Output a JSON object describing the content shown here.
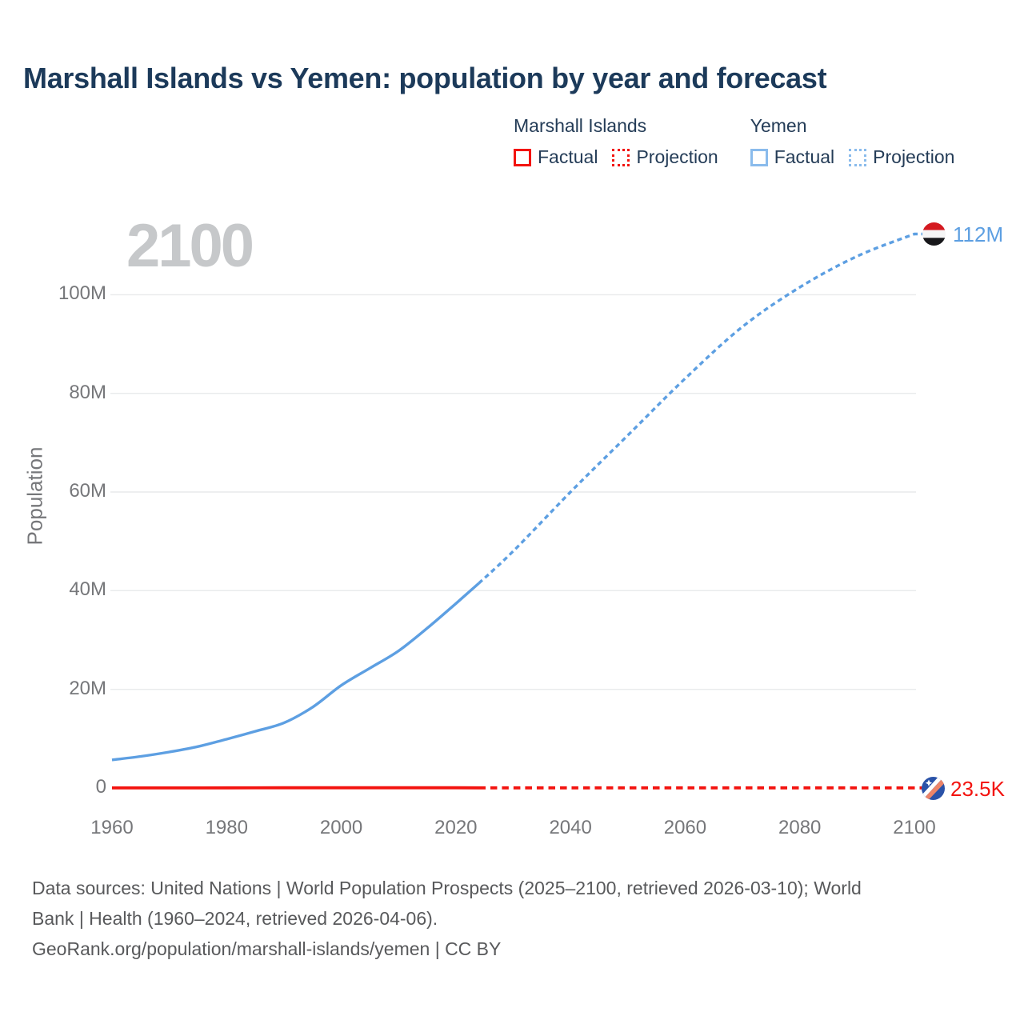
{
  "title": "Marshall Islands vs Yemen: population by year and forecast",
  "legend": {
    "groups": [
      {
        "label": "Marshall Islands",
        "color": "#f3130f",
        "items": [
          {
            "label": "Factual",
            "style": "solid"
          },
          {
            "label": "Projection",
            "style": "dotted"
          }
        ]
      },
      {
        "label": "Yemen",
        "color": "#8abbec",
        "items": [
          {
            "label": "Factual",
            "style": "solid"
          },
          {
            "label": "Projection",
            "style": "dotted"
          }
        ]
      }
    ]
  },
  "footer": {
    "lines": [
      "Data sources: United Nations | World Population Prospects (2025–2100, retrieved 2026-03-10); World",
      "Bank | Health (1960–2024, retrieved 2026-04-06).",
      "GeoRank.org/population/marshall-islands/yemen | CC BY"
    ]
  },
  "chart_data": {
    "type": "line",
    "title": "Marshall Islands vs Yemen: population by year and forecast",
    "xlabel": "",
    "ylabel": "Population",
    "watermark": "2100",
    "xlim": [
      1960,
      2100
    ],
    "ylim_millions": [
      0,
      114
    ],
    "grid": "horizontal",
    "legend_position": "top-right",
    "factual_until_year": 2024,
    "unit": "millions of people",
    "x_ticks": [
      1960,
      1980,
      2000,
      2020,
      2040,
      2060,
      2080,
      2100
    ],
    "y_ticks": [
      {
        "value_m": 0,
        "label": "0"
      },
      {
        "value_m": 20,
        "label": "20M"
      },
      {
        "value_m": 40,
        "label": "40M"
      },
      {
        "value_m": 60,
        "label": "60M"
      },
      {
        "value_m": 80,
        "label": "80M"
      },
      {
        "value_m": 100,
        "label": "100M"
      }
    ],
    "series": [
      {
        "name": "Yemen Factual",
        "group": "yemen",
        "style": "solid",
        "color": "#5d9fe2",
        "points": [
          [
            1960,
            5.7
          ],
          [
            1965,
            6.4
          ],
          [
            1970,
            7.3
          ],
          [
            1975,
            8.4
          ],
          [
            1980,
            9.9
          ],
          [
            1985,
            11.5
          ],
          [
            1990,
            13.2
          ],
          [
            1995,
            16.4
          ],
          [
            2000,
            20.8
          ],
          [
            2005,
            24.3
          ],
          [
            2010,
            27.8
          ],
          [
            2015,
            32.4
          ],
          [
            2020,
            37.4
          ],
          [
            2024,
            41.5
          ]
        ]
      },
      {
        "name": "Yemen Projection",
        "group": "yemen",
        "style": "dotted",
        "color": "#5d9fe2",
        "points": [
          [
            2024,
            41.5
          ],
          [
            2030,
            48
          ],
          [
            2040,
            60
          ],
          [
            2050,
            71.5
          ],
          [
            2060,
            83
          ],
          [
            2070,
            93.5
          ],
          [
            2080,
            101.5
          ],
          [
            2090,
            107.8
          ],
          [
            2100,
            112.3
          ]
        ]
      },
      {
        "name": "Marshall Islands Factual",
        "group": "marshall",
        "style": "solid",
        "color": "#f3130f",
        "points": [
          [
            1960,
            0.015
          ],
          [
            1970,
            0.023
          ],
          [
            1980,
            0.031
          ],
          [
            1990,
            0.046
          ],
          [
            2000,
            0.054
          ],
          [
            2010,
            0.053
          ],
          [
            2020,
            0.043
          ],
          [
            2024,
            0.038
          ]
        ]
      },
      {
        "name": "Marshall Islands Projection",
        "group": "marshall",
        "style": "dotted",
        "color": "#f3130f",
        "points": [
          [
            2024,
            0.038
          ],
          [
            2040,
            0.034
          ],
          [
            2060,
            0.029
          ],
          [
            2080,
            0.026
          ],
          [
            2100,
            0.0235
          ]
        ]
      }
    ],
    "end_labels": [
      {
        "series": "Yemen",
        "year": 2100,
        "label": "112M",
        "color": "#5d9fe2",
        "flag": "yemen-flag"
      },
      {
        "series": "Marshall Islands",
        "year": 2100,
        "label": "23.5K",
        "color": "#f3130f",
        "flag": "marshall-islands-flag"
      }
    ]
  }
}
